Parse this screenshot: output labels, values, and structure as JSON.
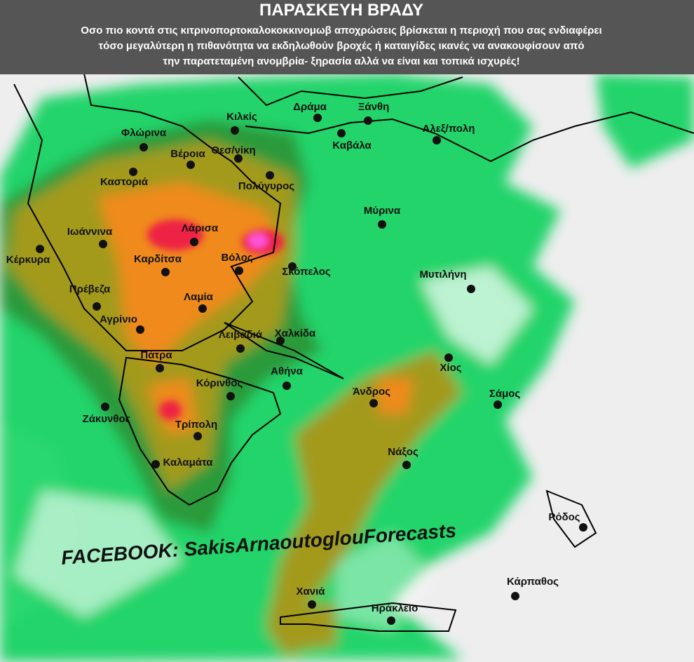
{
  "header": {
    "title": "ΠΑΡΑΣΚΕΥΗ  ΒΡΑΔΥ",
    "lines": [
      "Οσο πιο κοντά στις κιτρινοπορτοκαλοκοκκινομωβ αποχρώσεις βρίσκεται η περιοχή που σας ενδιαφέρει",
      "τόσο μεγαλύτερη η πιθανότητα  να εκδηλωθούν βροχές ή καταιγίδες ικανές να ανακουφίσουν από",
      "την παρατεταμένη ανομβρία- ξηρασία αλλά να είναι και τοπικά ισχυρές!"
    ]
  },
  "cities": [
    {
      "label": "Δράμα"
    },
    {
      "label": "Ξάνθη"
    },
    {
      "label": "Αλεξ/πολη"
    },
    {
      "label": "Κιλκίς"
    },
    {
      "label": "Φλώρινα"
    },
    {
      "label": "Βέροια"
    },
    {
      "label": "Θεσ/νίκη"
    },
    {
      "label": "Καβάλα"
    },
    {
      "label": "Καστοριά"
    },
    {
      "label": "Πολύγυρος"
    },
    {
      "label": "Μύρινα"
    },
    {
      "label": "Ιωάννινα"
    },
    {
      "label": "Λάρισα"
    },
    {
      "label": "Κέρκυρα"
    },
    {
      "label": "Καρδίτσα"
    },
    {
      "label": "Βόλος"
    },
    {
      "label": "Σκόπελος"
    },
    {
      "label": "Μυτιλήνη"
    },
    {
      "label": "Πρέβεζα"
    },
    {
      "label": "Λαμία"
    },
    {
      "label": "Αγρίνιο"
    },
    {
      "label": "Χαλκίδα"
    },
    {
      "label": "Λειβαδιά"
    },
    {
      "label": "Πάτρα"
    },
    {
      "label": "Χίος"
    },
    {
      "label": "Κόρινθος"
    },
    {
      "label": "Αθήνα"
    },
    {
      "label": "Άνδρος"
    },
    {
      "label": "Σάμος"
    },
    {
      "label": "Ζάκυνθος"
    },
    {
      "label": "Τρίπολη"
    },
    {
      "label": "Νάξος"
    },
    {
      "label": "Καλαμάτα"
    },
    {
      "label": "Ρόδος"
    },
    {
      "label": "Κάρπαθος"
    },
    {
      "label": "Χανιά"
    },
    {
      "label": "Ηράκλειο"
    }
  ],
  "watermark": "FACEBOOK: SakisArnaoutoglouForecasts"
}
